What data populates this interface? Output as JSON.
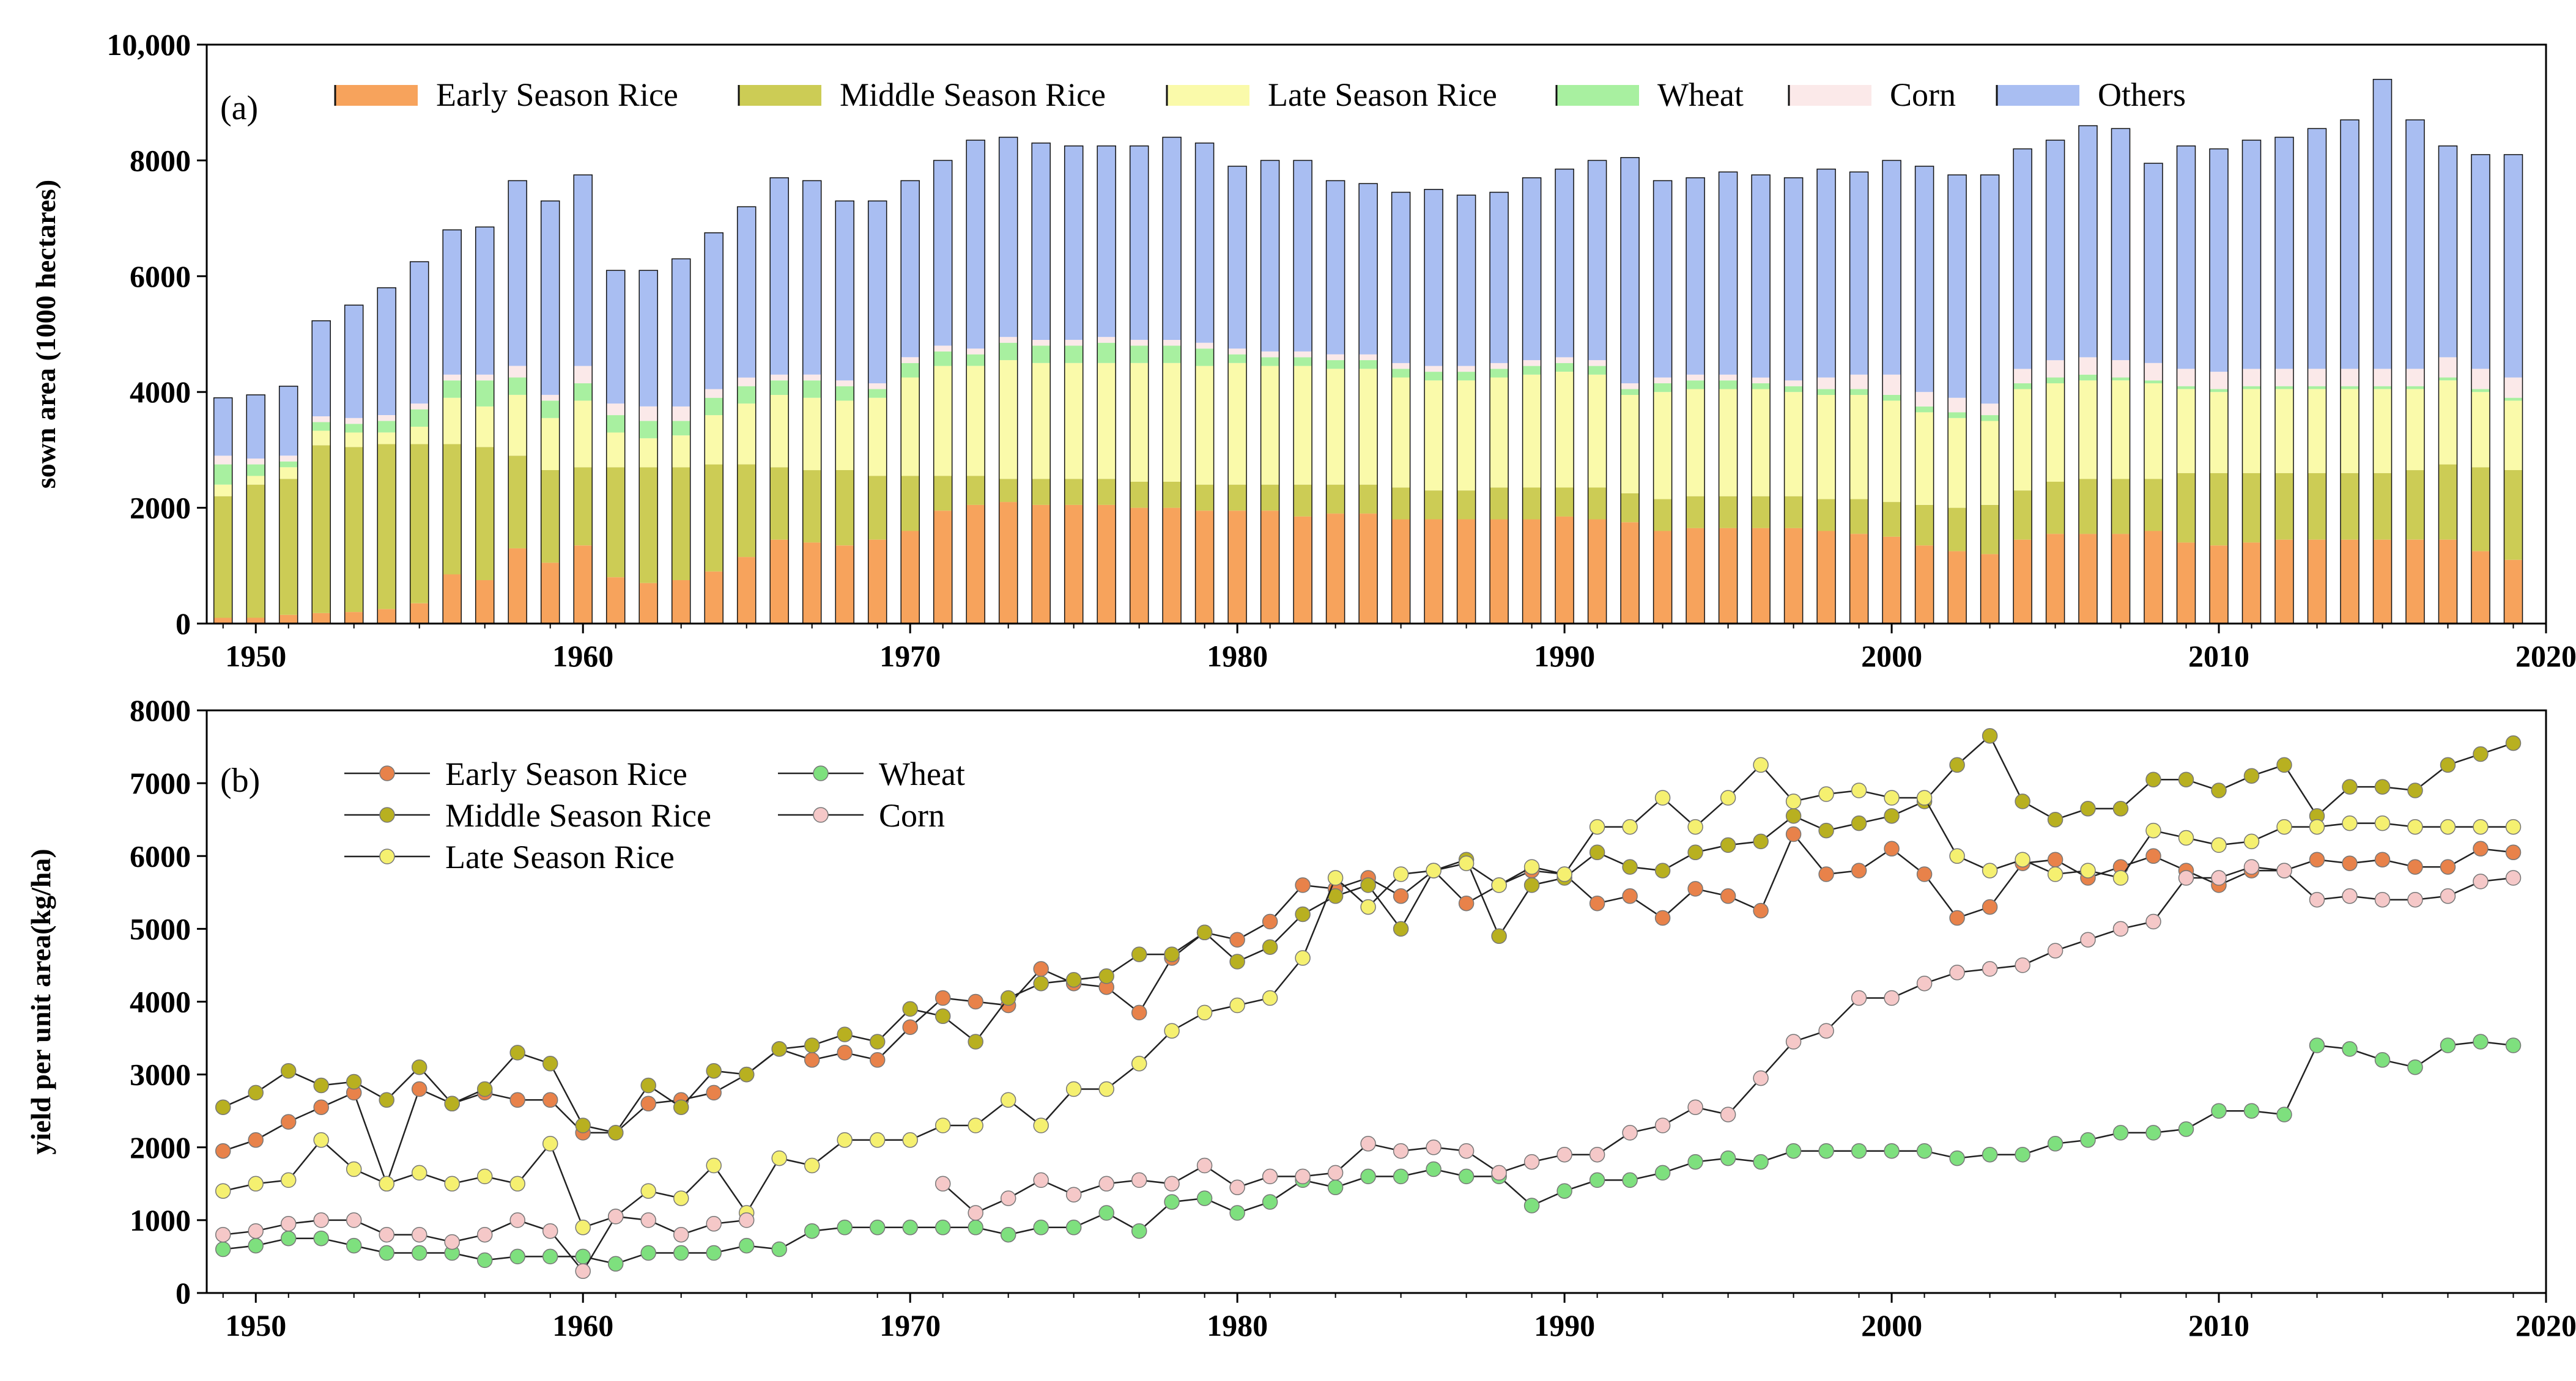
{
  "chart_data": [
    {
      "panel_label": "(a)",
      "type": "bar",
      "stacked": true,
      "x": [
        1949,
        1950,
        1951,
        1952,
        1953,
        1954,
        1955,
        1956,
        1957,
        1958,
        1959,
        1960,
        1961,
        1962,
        1963,
        1964,
        1965,
        1966,
        1967,
        1968,
        1969,
        1970,
        1971,
        1972,
        1973,
        1974,
        1975,
        1976,
        1977,
        1978,
        1979,
        1980,
        1981,
        1982,
        1983,
        1984,
        1985,
        1986,
        1987,
        1988,
        1989,
        1990,
        1991,
        1992,
        1993,
        1994,
        1995,
        1996,
        1997,
        1998,
        1999,
        2000,
        2001,
        2002,
        2003,
        2004,
        2005,
        2006,
        2007,
        2008,
        2009,
        2010,
        2011,
        2012,
        2013,
        2014,
        2015,
        2016,
        2017,
        2018,
        2019
      ],
      "xlim": [
        1948.5,
        2020
      ],
      "xticks": [
        1950,
        1960,
        1970,
        1980,
        1990,
        2000,
        2010,
        2020
      ],
      "xtick_labels": [
        "1950",
        "1960",
        "1970",
        "1980",
        "1990",
        "2000",
        "2010",
        "2020"
      ],
      "ylabel": "sown area (1000 hectares)",
      "ylim": [
        0,
        10000
      ],
      "yticks": [
        0,
        2000,
        4000,
        6000,
        8000,
        10000
      ],
      "ytick_labels": [
        "0",
        "2000",
        "4000",
        "6000",
        "8000",
        "10,000"
      ],
      "legend_position": "top",
      "series": [
        {
          "name": "Early Season Rice",
          "color": "#F7A35C",
          "values": [
            100,
            100,
            150,
            180,
            200,
            250,
            350,
            850,
            750,
            1300,
            1050,
            1350,
            800,
            700,
            750,
            900,
            1150,
            1450,
            1400,
            1350,
            1450,
            1600,
            1950,
            2050,
            2100,
            2050,
            2050,
            2050,
            2000,
            2000,
            1950,
            1950,
            1950,
            1850,
            1900,
            1900,
            1800,
            1800,
            1800,
            1800,
            1800,
            1850,
            1800,
            1750,
            1600,
            1650,
            1650,
            1650,
            1650,
            1600,
            1550,
            1500,
            1350,
            1250,
            1200,
            1450,
            1550,
            1550,
            1550,
            1600,
            1400,
            1350,
            1400,
            1450,
            1450,
            1450,
            1450,
            1450,
            1450,
            1250,
            1100
          ]
        },
        {
          "name": "Middle Season Rice",
          "color": "#CCCC55",
          "values": [
            2100,
            2300,
            2350,
            2900,
            2850,
            2850,
            2750,
            2250,
            2300,
            1600,
            1600,
            1350,
            1900,
            2000,
            1950,
            1850,
            1600,
            1250,
            1250,
            1300,
            1100,
            950,
            600,
            500,
            400,
            450,
            450,
            450,
            450,
            450,
            450,
            450,
            450,
            550,
            500,
            500,
            550,
            500,
            500,
            550,
            550,
            500,
            550,
            500,
            550,
            550,
            550,
            550,
            550,
            550,
            600,
            600,
            700,
            750,
            850,
            850,
            900,
            950,
            950,
            900,
            1200,
            1250,
            1200,
            1150,
            1150,
            1150,
            1150,
            1200,
            1300,
            1450,
            1550
          ]
        },
        {
          "name": "Late Season Rice",
          "color": "#FAFAAA",
          "values": [
            200,
            150,
            200,
            250,
            250,
            200,
            300,
            800,
            700,
            1050,
            900,
            1150,
            600,
            500,
            550,
            850,
            1050,
            1250,
            1250,
            1200,
            1350,
            1700,
            1900,
            1900,
            2050,
            2000,
            2000,
            2000,
            2050,
            2050,
            2050,
            2100,
            2050,
            2050,
            2000,
            2000,
            1900,
            1900,
            1900,
            1900,
            1950,
            2000,
            1950,
            1700,
            1850,
            1850,
            1850,
            1850,
            1800,
            1800,
            1800,
            1750,
            1600,
            1550,
            1450,
            1750,
            1700,
            1700,
            1700,
            1650,
            1450,
            1400,
            1450,
            1450,
            1450,
            1450,
            1450,
            1400,
            1450,
            1300,
            1200
          ]
        },
        {
          "name": "Wheat",
          "color": "#A8F0A0",
          "values": [
            350,
            200,
            100,
            150,
            150,
            200,
            300,
            300,
            450,
            300,
            300,
            300,
            300,
            300,
            250,
            300,
            300,
            250,
            300,
            250,
            150,
            250,
            250,
            200,
            300,
            300,
            300,
            350,
            300,
            300,
            300,
            150,
            150,
            150,
            150,
            150,
            150,
            150,
            150,
            150,
            150,
            150,
            150,
            100,
            150,
            150,
            150,
            100,
            100,
            100,
            100,
            100,
            100,
            100,
            100,
            100,
            100,
            100,
            50,
            50,
            50,
            50,
            50,
            50,
            50,
            50,
            50,
            50,
            50,
            50,
            50
          ]
        },
        {
          "name": "Corn",
          "color": "#FBE9E9",
          "values": [
            150,
            100,
            100,
            100,
            100,
            100,
            100,
            100,
            100,
            200,
            100,
            300,
            200,
            250,
            250,
            150,
            150,
            100,
            100,
            100,
            100,
            100,
            100,
            100,
            100,
            100,
            100,
            100,
            100,
            100,
            100,
            100,
            100,
            100,
            100,
            100,
            100,
            100,
            100,
            100,
            100,
            100,
            100,
            100,
            100,
            100,
            100,
            100,
            100,
            200,
            250,
            350,
            250,
            250,
            200,
            250,
            300,
            300,
            300,
            300,
            300,
            300,
            300,
            300,
            300,
            300,
            300,
            300,
            350,
            350,
            350
          ]
        },
        {
          "name": "Others",
          "color": "#A9BEF2",
          "values": [
            1000,
            1100,
            1200,
            1650,
            1950,
            2200,
            2450,
            2500,
            2550,
            3200,
            3350,
            3300,
            2300,
            2350,
            2550,
            2700,
            2950,
            3400,
            3350,
            3100,
            3150,
            3050,
            3200,
            3600,
            3450,
            3400,
            3350,
            3300,
            3350,
            3500,
            3450,
            3150,
            3300,
            3300,
            3000,
            2950,
            2950,
            3050,
            2950,
            2950,
            3150,
            3250,
            3450,
            3900,
            3400,
            3400,
            3500,
            3500,
            3500,
            3600,
            3500,
            3700,
            3900,
            3850,
            3950,
            3800,
            3800,
            4000,
            4000,
            3450,
            3850,
            3850,
            3950,
            4000,
            4150,
            4300,
            5000,
            4300,
            3650,
            3700,
            3850
          ]
        }
      ]
    },
    {
      "panel_label": "(b)",
      "type": "line",
      "x": [
        1949,
        1950,
        1951,
        1952,
        1953,
        1954,
        1955,
        1956,
        1957,
        1958,
        1959,
        1960,
        1961,
        1962,
        1963,
        1964,
        1965,
        1966,
        1967,
        1968,
        1969,
        1970,
        1971,
        1972,
        1973,
        1974,
        1975,
        1976,
        1977,
        1978,
        1979,
        1980,
        1981,
        1982,
        1983,
        1984,
        1985,
        1986,
        1987,
        1988,
        1989,
        1990,
        1991,
        1992,
        1993,
        1994,
        1995,
        1996,
        1997,
        1998,
        1999,
        2000,
        2001,
        2002,
        2003,
        2004,
        2005,
        2006,
        2007,
        2008,
        2009,
        2010,
        2011,
        2012,
        2013,
        2014,
        2015,
        2016,
        2017,
        2018,
        2019
      ],
      "xlim": [
        1948.5,
        2020
      ],
      "xticks": [
        1950,
        1960,
        1970,
        1980,
        1990,
        2000,
        2010,
        2020
      ],
      "xtick_labels": [
        "1950",
        "1960",
        "1970",
        "1980",
        "1990",
        "2000",
        "2010",
        "2020"
      ],
      "ylabel": "yield per unit area(kg/ha)",
      "ylim": [
        0,
        8000
      ],
      "yticks": [
        0,
        1000,
        2000,
        3000,
        4000,
        5000,
        6000,
        7000,
        8000
      ],
      "ytick_labels": [
        "0",
        "1000",
        "2000",
        "3000",
        "4000",
        "5000",
        "6000",
        "7000",
        "8000"
      ],
      "legend_position": "top-left",
      "series": [
        {
          "name": "Early Season Rice",
          "color": "#E8824A",
          "values": [
            1950,
            2100,
            2350,
            2550,
            2750,
            1500,
            2800,
            2600,
            2750,
            2650,
            2650,
            2200,
            2200,
            2600,
            2650,
            2750,
            3000,
            3350,
            3200,
            3300,
            3200,
            3650,
            4050,
            4000,
            3950,
            4450,
            4250,
            4200,
            3850,
            4600,
            4950,
            4850,
            5100,
            5600,
            5550,
            5700,
            5450,
            5800,
            5350,
            5600,
            5800,
            5750,
            5350,
            5450,
            5150,
            5550,
            5450,
            5250,
            6300,
            5750,
            5800,
            6100,
            5750,
            5150,
            5300,
            5900,
            5950,
            5700,
            5850,
            6000,
            5800,
            5600,
            5800,
            5800,
            5950,
            5900,
            5950,
            5850,
            5850,
            6100,
            6050
          ]
        },
        {
          "name": "Middle Season Rice",
          "color": "#B8B020",
          "values": [
            2550,
            2750,
            3050,
            2850,
            2900,
            2650,
            3100,
            2600,
            2800,
            3300,
            3150,
            2300,
            2200,
            2850,
            2550,
            3050,
            3000,
            3350,
            3400,
            3550,
            3450,
            3900,
            3800,
            3450,
            4050,
            4250,
            4300,
            4350,
            4650,
            4650,
            4950,
            4550,
            4750,
            5200,
            5450,
            5600,
            5000,
            5800,
            5950,
            4900,
            5600,
            5700,
            6050,
            5850,
            5800,
            6050,
            6150,
            6200,
            6550,
            6350,
            6450,
            6550,
            6750,
            7250,
            7650,
            6750,
            6500,
            6650,
            6650,
            7050,
            7050,
            6900,
            7100,
            7250,
            6550,
            6950,
            6950,
            6900,
            7250,
            7400,
            7550
          ]
        },
        {
          "name": "Late Season Rice",
          "color": "#F5F070",
          "values": [
            1400,
            1500,
            1550,
            2100,
            1700,
            1500,
            1650,
            1500,
            1600,
            1500,
            2050,
            900,
            1050,
            1400,
            1300,
            1750,
            1100,
            1850,
            1750,
            2100,
            2100,
            2100,
            2300,
            2300,
            2650,
            2300,
            2800,
            2800,
            3150,
            3600,
            3850,
            3950,
            4050,
            4600,
            5700,
            5300,
            5750,
            5800,
            5900,
            5600,
            5850,
            5750,
            6400,
            6400,
            6800,
            6400,
            6800,
            7250,
            6750,
            6850,
            6900,
            6800,
            6800,
            6000,
            5800,
            5950,
            5750,
            5800,
            5700,
            6350,
            6250,
            6150,
            6200,
            6400,
            6400,
            6450,
            6450,
            6400,
            6400,
            6400,
            6400
          ]
        },
        {
          "name": "Wheat",
          "color": "#7EE07E",
          "values": [
            600,
            650,
            750,
            750,
            650,
            550,
            550,
            550,
            450,
            500,
            500,
            500,
            400,
            550,
            550,
            550,
            650,
            600,
            850,
            900,
            900,
            900,
            900,
            900,
            800,
            900,
            900,
            1100,
            850,
            1250,
            1300,
            1100,
            1250,
            1550,
            1450,
            1600,
            1600,
            1700,
            1600,
            1600,
            1200,
            1400,
            1550,
            1550,
            1650,
            1800,
            1850,
            1800,
            1950,
            1950,
            1950,
            1950,
            1950,
            1850,
            1900,
            1900,
            2050,
            2100,
            2200,
            2200,
            2250,
            2500,
            2500,
            2450,
            3400,
            3350,
            3200,
            3100,
            3400,
            3450,
            3400
          ]
        },
        {
          "name": "Corn",
          "color": "#F5C8C8",
          "values": [
            800,
            850,
            950,
            1000,
            1000,
            800,
            800,
            700,
            800,
            1000,
            850,
            300,
            1050,
            1000,
            800,
            950,
            1000,
            null,
            null,
            null,
            null,
            null,
            1500,
            1100,
            1300,
            1550,
            1350,
            1500,
            1550,
            1500,
            1750,
            1450,
            1600,
            1600,
            1650,
            2050,
            1950,
            2000,
            1950,
            1650,
            1800,
            1900,
            1900,
            2200,
            2300,
            2550,
            2450,
            2950,
            3450,
            3600,
            4050,
            4050,
            4250,
            4400,
            4450,
            4500,
            4700,
            4850,
            5000,
            5100,
            5700,
            5700,
            5850,
            5800,
            5400,
            5450,
            5400,
            5400,
            5450,
            5650,
            5700
          ]
        }
      ]
    }
  ]
}
